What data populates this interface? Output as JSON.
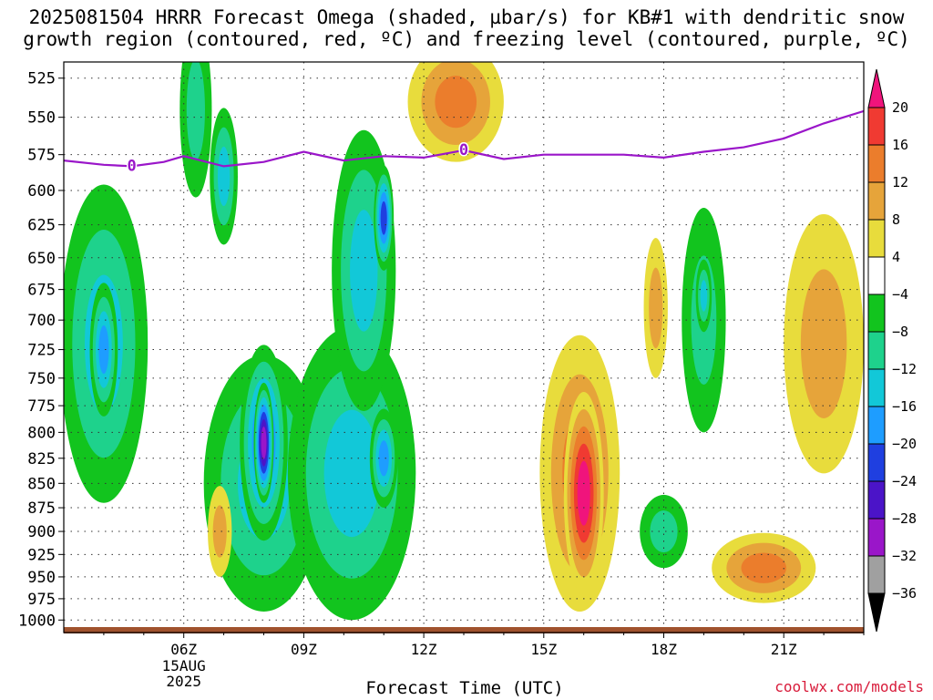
{
  "title": {
    "line1": "2025081504 HRRR Forecast Omega (shaded, µbar/s) for KB#1 with dendritic snow",
    "line2": "growth region (contoured, red, ºC) and freezing level (contoured, purple, ºC)"
  },
  "credit": "coolwx.com/models",
  "chart_data": {
    "type": "heatmap",
    "title": "2025081504 HRRR Forecast Omega (shaded, µbar/s) for KB#1 with dendritic snow growth region (contoured, red, ºC) and freezing level (contoured, purple, ºC)",
    "xlabel": "Forecast Time (UTC)",
    "ylabel": "",
    "x_range_hours": [
      3.0,
      23.0
    ],
    "x_ticks": [
      {
        "hour": 6,
        "label": "06Z",
        "sub": [
          "15AUG",
          "2025"
        ]
      },
      {
        "hour": 9,
        "label": "09Z"
      },
      {
        "hour": 12,
        "label": "12Z"
      },
      {
        "hour": 15,
        "label": "15Z"
      },
      {
        "hour": 18,
        "label": "18Z"
      },
      {
        "hour": 21,
        "label": "21Z"
      }
    ],
    "y_scale": "log-pressure, inverted",
    "y_range_hpa": [
      1015,
      515
    ],
    "y_ticks": [
      525,
      550,
      575,
      600,
      625,
      650,
      675,
      700,
      725,
      750,
      775,
      800,
      825,
      850,
      875,
      900,
      925,
      950,
      975,
      1000
    ],
    "grid": "dotted",
    "colorbar": {
      "levels": [
        -36,
        -32,
        -28,
        -24,
        -20,
        -16,
        -12,
        -8,
        -4,
        4,
        8,
        12,
        16,
        20
      ],
      "colors": [
        "#000000",
        "#a0a0a0",
        "#9a16c9",
        "#4b14c8",
        "#1f3fe0",
        "#1e9dff",
        "#12c8d8",
        "#1ed28c",
        "#12c41e",
        "#ffffff",
        "#e8dc3c",
        "#e6a43a",
        "#eb7d2c",
        "#f03a32",
        "#f0147c"
      ]
    },
    "freezing_level_0C": {
      "label": "0",
      "hours": [
        3.0,
        4.0,
        4.7,
        5.5,
        6.0,
        7.0,
        8.0,
        9.0,
        10.0,
        11.0,
        12.0,
        13.0,
        14.0,
        15.0,
        16.0,
        17.0,
        18.0,
        19.0,
        20.0,
        21.0,
        22.0,
        23.0
      ],
      "hpa": [
        579,
        582,
        583,
        580,
        576,
        583,
        580,
        573,
        579,
        576,
        577,
        572,
        578,
        575,
        575,
        575,
        577,
        573,
        570,
        564,
        554,
        546
      ]
    },
    "omega_features": [
      {
        "hour": 4.0,
        "hpa": 720,
        "dt": 1.1,
        "dp": 150,
        "value": -12
      },
      {
        "hour": 4.0,
        "hpa": 725,
        "dt": 0.35,
        "dp": 60,
        "value": -16
      },
      {
        "hour": 6.3,
        "hpa": 545,
        "dt": 0.4,
        "dp": 60,
        "value": -8
      },
      {
        "hour": 7.0,
        "hpa": 590,
        "dt": 0.35,
        "dp": 50,
        "value": -12
      },
      {
        "hour": 8.0,
        "hpa": 850,
        "dt": 1.5,
        "dp": 140,
        "value": -12
      },
      {
        "hour": 8.0,
        "hpa": 810,
        "dt": 0.6,
        "dp": 100,
        "value": -20
      },
      {
        "hour": 8.0,
        "hpa": 810,
        "dt": 0.25,
        "dp": 60,
        "value": -28
      },
      {
        "hour": 10.2,
        "hpa": 840,
        "dt": 1.6,
        "dp": 160,
        "value": -12
      },
      {
        "hour": 10.5,
        "hpa": 660,
        "dt": 0.8,
        "dp": 120,
        "value": -12
      },
      {
        "hour": 11.0,
        "hpa": 620,
        "dt": 0.25,
        "dp": 40,
        "value": -20
      },
      {
        "hour": 11.0,
        "hpa": 825,
        "dt": 0.35,
        "dp": 50,
        "value": -16
      },
      {
        "hour": 12.8,
        "hpa": 540,
        "dt": 1.2,
        "dp": 40,
        "value": 12
      },
      {
        "hour": 6.9,
        "hpa": 900,
        "dt": 0.3,
        "dp": 50,
        "value": 8
      },
      {
        "hour": 15.9,
        "hpa": 840,
        "dt": 1.0,
        "dp": 150,
        "value": 12
      },
      {
        "hour": 16.0,
        "hpa": 860,
        "dt": 0.5,
        "dp": 110,
        "value": 20
      },
      {
        "hour": 18.0,
        "hpa": 900,
        "dt": 0.6,
        "dp": 40,
        "value": -8
      },
      {
        "hour": 19.0,
        "hpa": 700,
        "dt": 0.55,
        "dp": 100,
        "value": -8
      },
      {
        "hour": 19.0,
        "hpa": 680,
        "dt": 0.2,
        "dp": 30,
        "value": -12
      },
      {
        "hour": 17.8,
        "hpa": 690,
        "dt": 0.3,
        "dp": 60,
        "value": 8
      },
      {
        "hour": 20.5,
        "hpa": 940,
        "dt": 1.3,
        "dp": 40,
        "value": 12
      },
      {
        "hour": 22.0,
        "hpa": 720,
        "dt": 1.0,
        "dp": 120,
        "value": 8
      }
    ]
  }
}
